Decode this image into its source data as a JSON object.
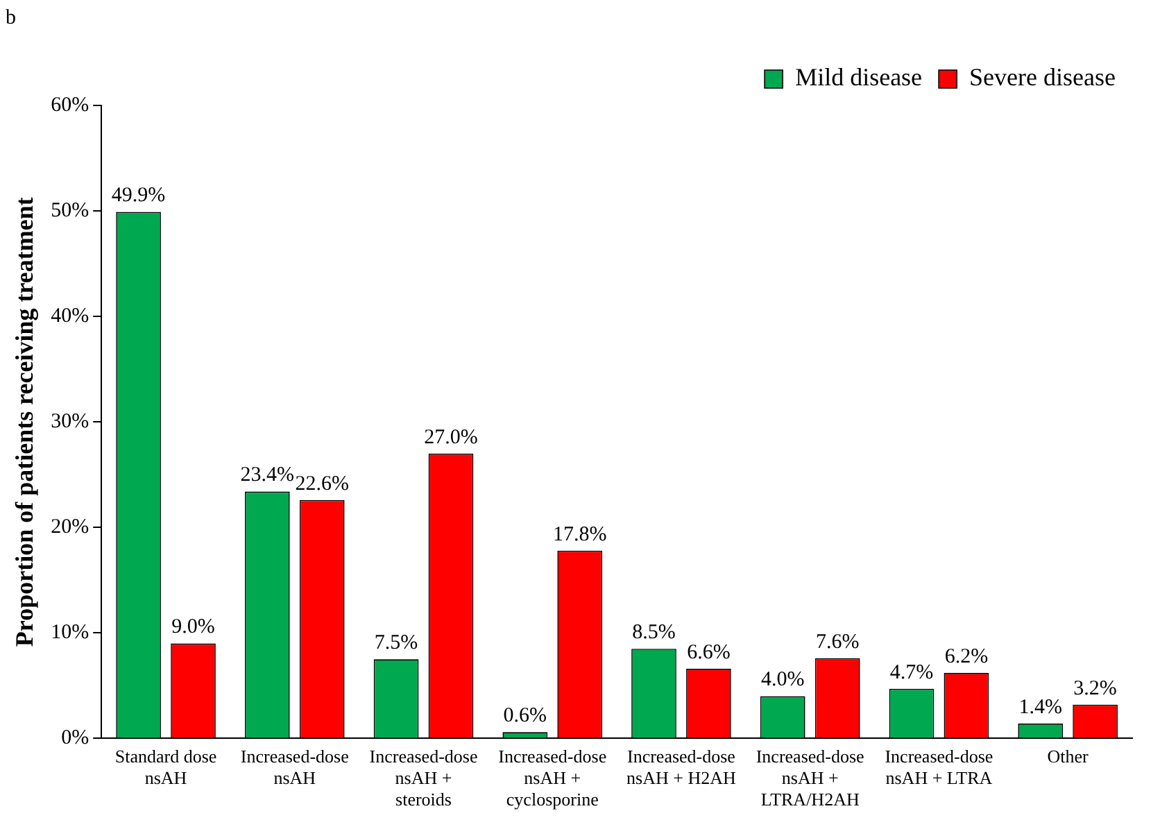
{
  "chart_data": {
    "type": "bar",
    "title": "b",
    "ylabel": "Proportion of patients receiving treatment",
    "categories": [
      "Standard dose\nnsAH",
      "Increased-dose\nnsAH",
      "Increased-dose\nnsAH +\nsteroids",
      "Increased-dose\nnsAH +\ncyclosporine",
      "Increased-dose\nnsAH + H2AH",
      "Increased-dose\nnsAH +\nLTRA/H2AH",
      "Increased-dose\nnsAH + LTRA",
      "Other"
    ],
    "series": [
      {
        "name": "Mild disease",
        "color": "#00a84f",
        "values": [
          49.9,
          23.4,
          7.5,
          0.6,
          8.5,
          4.0,
          4.7,
          1.4
        ],
        "value_labels": [
          "49.9%",
          "23.4%",
          "7.5%",
          "0.6%",
          "8.5%",
          "4.0%",
          "4.7%",
          "1.4%"
        ]
      },
      {
        "name": "Severe disease",
        "color": "#ff0000",
        "values": [
          9.0,
          22.6,
          27.0,
          17.8,
          6.6,
          7.6,
          6.2,
          3.2
        ],
        "value_labels": [
          "9.0%",
          "22.6%",
          "27.0%",
          "17.8%",
          "6.6%",
          "7.6%",
          "6.2%",
          "3.2%"
        ]
      }
    ],
    "ylim": [
      0,
      60
    ],
    "yticks": [
      {
        "value": 0,
        "label": "0%"
      },
      {
        "value": 10,
        "label": "10%"
      },
      {
        "value": 20,
        "label": "20%"
      },
      {
        "value": 30,
        "label": "30%"
      },
      {
        "value": 40,
        "label": "40%"
      },
      {
        "value": 50,
        "label": "50%"
      },
      {
        "value": 60,
        "label": "60%"
      }
    ],
    "grid": false,
    "legend": "top right"
  }
}
